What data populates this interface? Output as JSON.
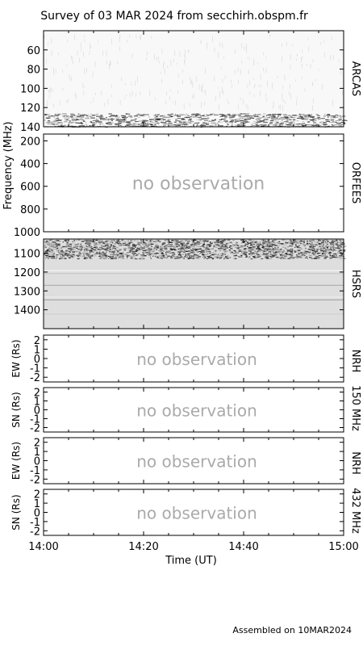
{
  "title": "Survey of 03 MAR 2024 from secchirh.obspm.fr",
  "footer": "Assembled on 10MAR2024",
  "shared_ylabel": "Frequency (MHz)",
  "no_obs_text": "no observation",
  "time_axis": {
    "label": "Time (UT)",
    "ticks": [
      "14:00",
      "14:20",
      "14:40",
      "15:00"
    ],
    "range": [
      "14:00",
      "15:00"
    ]
  },
  "colors": {
    "frame": "#000000",
    "no_obs": "#aaaaaa",
    "hsrs_bg": "#dedede"
  },
  "chart_data": [
    {
      "type": "heatmap",
      "right_label": "ARCAS",
      "ylim": [
        140,
        40
      ],
      "yticks": [
        60,
        80,
        100,
        120,
        140
      ],
      "observed": true,
      "note": "emission band near 125-140 MHz"
    },
    {
      "type": "heatmap",
      "right_label": "ORFEES",
      "ylim": [
        1000,
        140
      ],
      "yticks": [
        200,
        400,
        600,
        800,
        1000
      ],
      "observed": false
    },
    {
      "type": "heatmap",
      "right_label": "HSRS",
      "ylim": [
        1500,
        1025
      ],
      "yticks": [
        1100,
        1200,
        1300,
        1400
      ],
      "observed": true,
      "note": "broadband interference near 1050-1130 MHz"
    },
    {
      "type": "heatmap",
      "ylabel": "EW (Rs)",
      "right_label": "NRH",
      "ylim": [
        -2.5,
        2.5
      ],
      "yticks": [
        2,
        1,
        0,
        -1,
        -2
      ],
      "observed": false
    },
    {
      "type": "heatmap",
      "ylabel": "SN (Rs)",
      "right_label": "150 MHz",
      "ylim": [
        -2.5,
        2.5
      ],
      "yticks": [
        2,
        1,
        0,
        -1,
        -2
      ],
      "observed": false
    },
    {
      "type": "heatmap",
      "ylabel": "EW (Rs)",
      "right_label": "NRH",
      "ylim": [
        -2.5,
        2.5
      ],
      "yticks": [
        2,
        1,
        0,
        -1,
        -2
      ],
      "observed": false
    },
    {
      "type": "heatmap",
      "ylabel": "SN (Rs)",
      "right_label": "432 MHz",
      "ylim": [
        -2.5,
        2.5
      ],
      "yticks": [
        2,
        1,
        0,
        -1,
        -2
      ],
      "observed": false
    }
  ]
}
